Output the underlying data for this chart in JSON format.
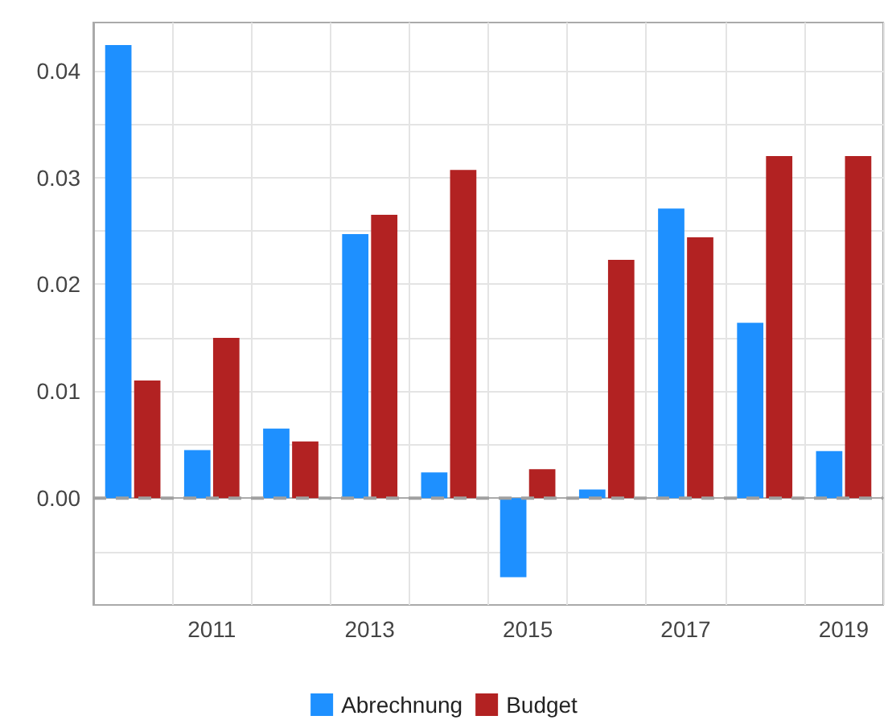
{
  "chart_data": {
    "type": "bar",
    "categories": [
      null,
      "2011",
      null,
      "2013",
      null,
      "2015",
      null,
      "2017",
      null,
      "2019"
    ],
    "series": [
      {
        "name": "Abrechnung",
        "color": "#1e90ff",
        "values": [
          0.0424,
          0.0045,
          0.0065,
          0.0247,
          0.0024,
          -0.0074,
          0.0008,
          0.0271,
          0.0164,
          0.0044
        ]
      },
      {
        "name": "Budget",
        "color": "#b22222",
        "values": [
          0.011,
          0.015,
          0.0053,
          0.0265,
          0.0307,
          0.0027,
          0.0223,
          0.0244,
          0.032,
          0.032
        ]
      }
    ],
    "ylim": [
      -0.01,
      0.0445
    ],
    "yticks": [
      {
        "value": -0.005,
        "label": null
      },
      {
        "value": 0,
        "label": "0.00"
      },
      {
        "value": 0.005,
        "label": null
      },
      0.01,
      {
        "value": 0.015,
        "label": null
      },
      0.02,
      {
        "value": 0.025,
        "label": null
      },
      0.03,
      {
        "value": 0.035,
        "label": null
      },
      0.04
    ],
    "ref_lines": [
      {
        "axis": "y",
        "value": 0,
        "color": "#a0a0a0",
        "line_style": "dashed"
      }
    ],
    "grid": true,
    "legend": "bottom"
  }
}
